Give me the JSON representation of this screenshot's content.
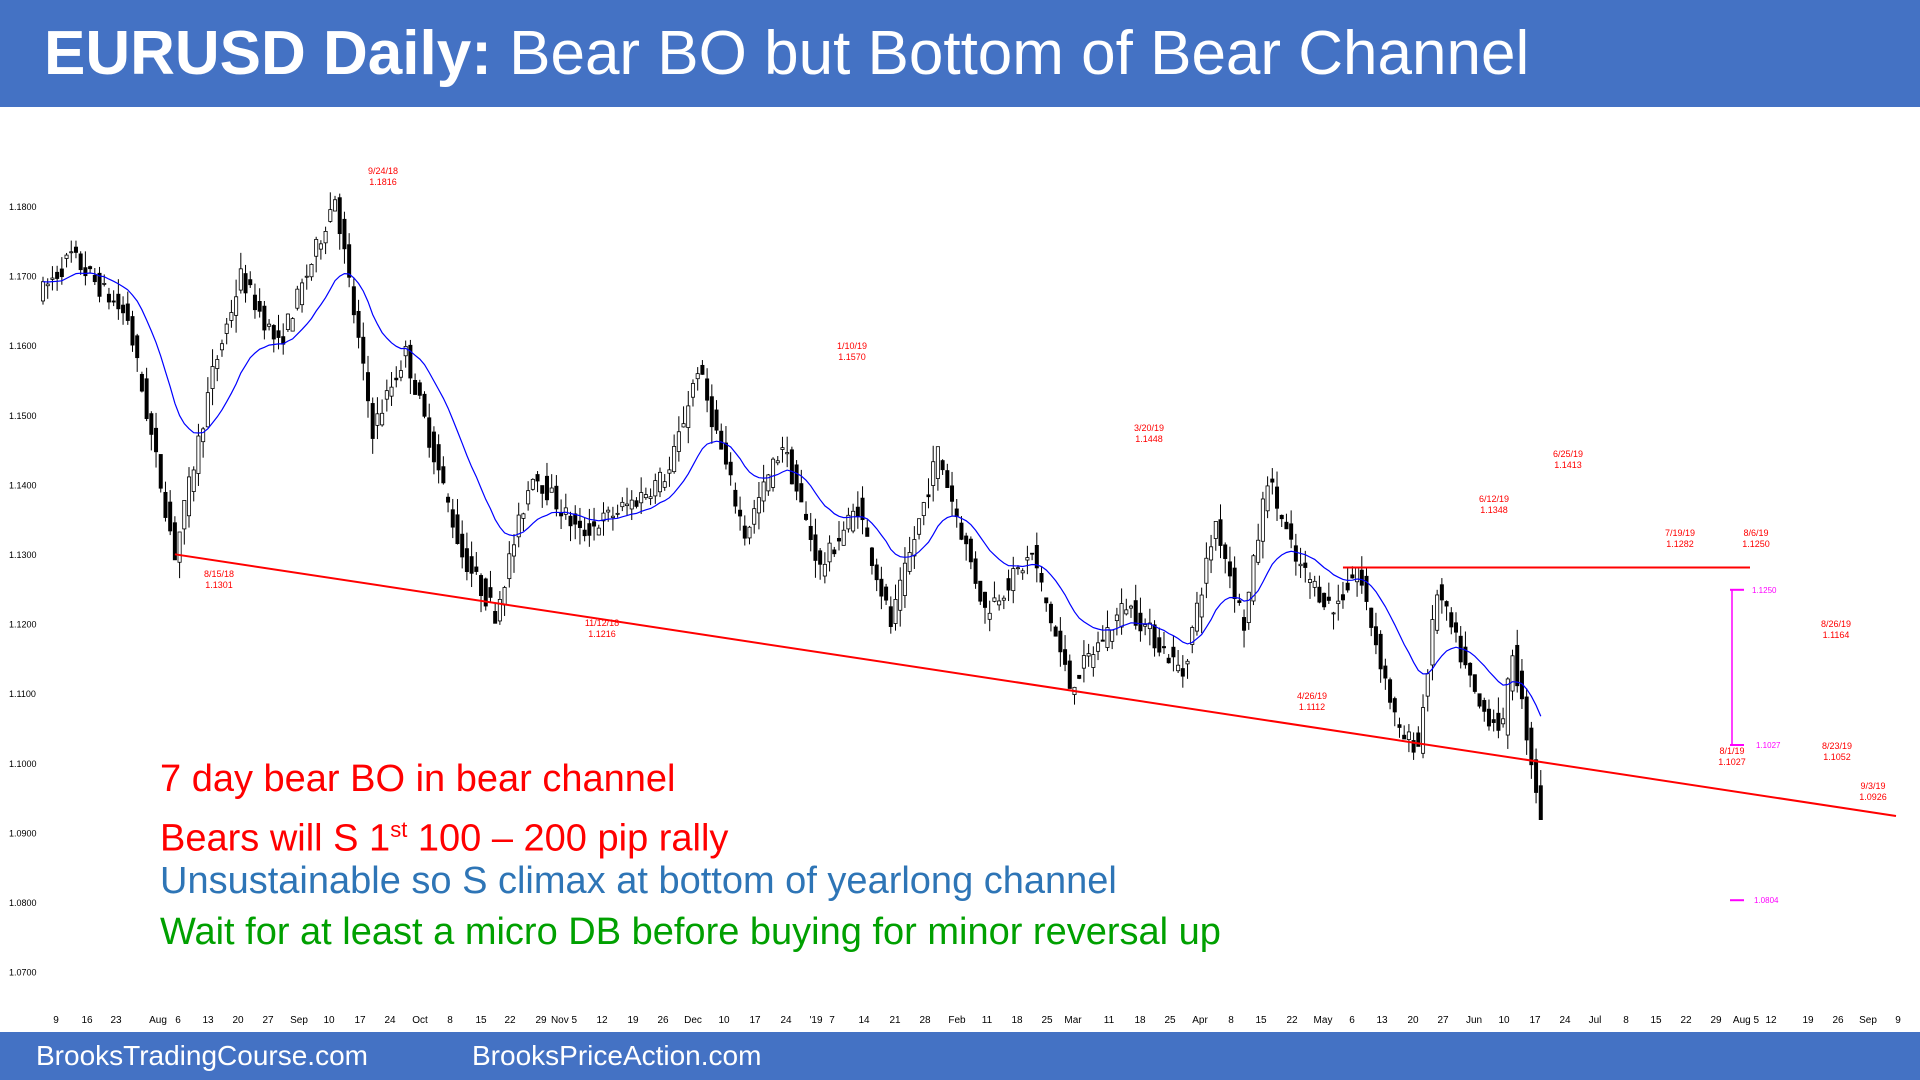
{
  "header": {
    "title_bold": "EURUSD Daily:",
    "title_rest": "Bear BO but Bottom of Bear Channel",
    "bg_color": "#4472c4"
  },
  "footer": {
    "left_link": "BrooksTradingCourse.com",
    "right_link": "BrooksPriceAction.com"
  },
  "notes": [
    {
      "pre": "7 day bear BO in bear channel",
      "sup": "",
      "post": "",
      "color": "#ff0000"
    },
    {
      "pre": "Bears will S 1",
      "sup": "st",
      "post": " 100 – 200 pip rally",
      "color": "#ff0000"
    },
    {
      "pre": "Unsustainable so S climax at bottom of yearlong channel",
      "sup": "",
      "post": "",
      "color": "#2e75b6"
    },
    {
      "pre": "Wait for at least a micro DB before buying for minor reversal up",
      "sup": "",
      "post": "",
      "color": "#00a000"
    }
  ],
  "chart_data": {
    "type": "candlestick",
    "instrument": "EURUSD",
    "timeframe": "Daily",
    "ylim": [
      1.066,
      1.186
    ],
    "y_ticks": [
      "1.1800",
      "1.1700",
      "1.1600",
      "1.1500",
      "1.1400",
      "1.1300",
      "1.1200",
      "1.1100",
      "1.1000",
      "1.0900",
      "1.0800",
      "1.0700"
    ],
    "x_ticks": [
      "9",
      "16",
      "23",
      "Aug",
      "6",
      "13",
      "20",
      "27",
      "Sep",
      "10",
      "17",
      "24",
      "Oct",
      "8",
      "15",
      "22",
      "29",
      "Nov 5",
      "12",
      "19",
      "26",
      "Dec",
      "10",
      "17",
      "24",
      "'19",
      "7",
      "14",
      "21",
      "28",
      "Feb",
      "11",
      "18",
      "25",
      "Mar",
      "11",
      "18",
      "25",
      "Apr",
      "8",
      "15",
      "22",
      "May",
      "6",
      "13",
      "20",
      "27",
      "Jun",
      "10",
      "17",
      "24",
      "Jul",
      "8",
      "15",
      "22",
      "29",
      "Aug 5",
      "12",
      "19",
      "26",
      "Sep",
      "9"
    ],
    "price_path_anchors": [
      {
        "bar": 0,
        "price": 1.168
      },
      {
        "bar": 6,
        "price": 1.173
      },
      {
        "bar": 18,
        "price": 1.164
      },
      {
        "bar": 28,
        "price": 1.1301
      },
      {
        "bar": 36,
        "price": 1.156
      },
      {
        "bar": 42,
        "price": 1.17
      },
      {
        "bar": 50,
        "price": 1.16
      },
      {
        "bar": 57,
        "price": 1.172
      },
      {
        "bar": 62,
        "price": 1.1816
      },
      {
        "bar": 70,
        "price": 1.148
      },
      {
        "bar": 77,
        "price": 1.159
      },
      {
        "bar": 89,
        "price": 1.13
      },
      {
        "bar": 96,
        "price": 1.1216
      },
      {
        "bar": 104,
        "price": 1.142
      },
      {
        "bar": 114,
        "price": 1.133
      },
      {
        "bar": 126,
        "price": 1.138
      },
      {
        "bar": 133,
        "price": 1.142
      },
      {
        "bar": 139,
        "price": 1.157
      },
      {
        "bar": 149,
        "price": 1.133
      },
      {
        "bar": 157,
        "price": 1.146
      },
      {
        "bar": 165,
        "price": 1.128
      },
      {
        "bar": 173,
        "price": 1.137
      },
      {
        "bar": 180,
        "price": 1.12
      },
      {
        "bar": 190,
        "price": 1.1448
      },
      {
        "bar": 200,
        "price": 1.122
      },
      {
        "bar": 210,
        "price": 1.13
      },
      {
        "bar": 218,
        "price": 1.1112
      },
      {
        "bar": 230,
        "price": 1.123
      },
      {
        "bar": 242,
        "price": 1.113
      },
      {
        "bar": 249,
        "price": 1.1348
      },
      {
        "bar": 255,
        "price": 1.12
      },
      {
        "bar": 260,
        "price": 1.1413
      },
      {
        "bar": 266,
        "price": 1.129
      },
      {
        "bar": 274,
        "price": 1.122
      },
      {
        "bar": 279,
        "price": 1.1282
      },
      {
        "bar": 288,
        "price": 1.104
      },
      {
        "bar": 292,
        "price": 1.1027
      },
      {
        "bar": 296,
        "price": 1.125
      },
      {
        "bar": 305,
        "price": 1.108
      },
      {
        "bar": 310,
        "price": 1.1052
      },
      {
        "bar": 312,
        "price": 1.1164
      },
      {
        "bar": 318,
        "price": 1.0926
      }
    ],
    "annotations": [
      {
        "date": "9/24/18",
        "price": "1.1816"
      },
      {
        "date": "8/15/18",
        "price": "1.1301"
      },
      {
        "date": "11/12/18",
        "price": "1.1216"
      },
      {
        "date": "1/10/19",
        "price": "1.1570"
      },
      {
        "date": "3/20/19",
        "price": "1.1448"
      },
      {
        "date": "4/26/19",
        "price": "1.1112"
      },
      {
        "date": "6/12/19",
        "price": "1.1348"
      },
      {
        "date": "6/25/19",
        "price": "1.1413"
      },
      {
        "date": "7/19/19",
        "price": "1.1282"
      },
      {
        "date": "8/6/19",
        "price": "1.1250"
      },
      {
        "date": "8/1/19",
        "price": "1.1027"
      },
      {
        "date": "8/26/19",
        "price": "1.1164"
      },
      {
        "date": "8/23/19",
        "price": "1.1052"
      },
      {
        "date": "9/3/19",
        "price": "1.0926"
      }
    ],
    "magenta_labels": [
      "1.1250",
      "1.1027",
      "1.0804"
    ],
    "bear_trend_line": {
      "from": {
        "date": "8/15/18",
        "price": 1.1301
      },
      "to": {
        "date": "Sep 2019",
        "price": 1.0925
      }
    },
    "resistance_line_price": 1.1282,
    "moving_average": "20 bar EMA",
    "colors": {
      "candle": "#000000",
      "ma": "#0000ff",
      "trend_line": "#ff0000",
      "labels": "#ff0000",
      "measured_move": "#ff00ff"
    }
  }
}
